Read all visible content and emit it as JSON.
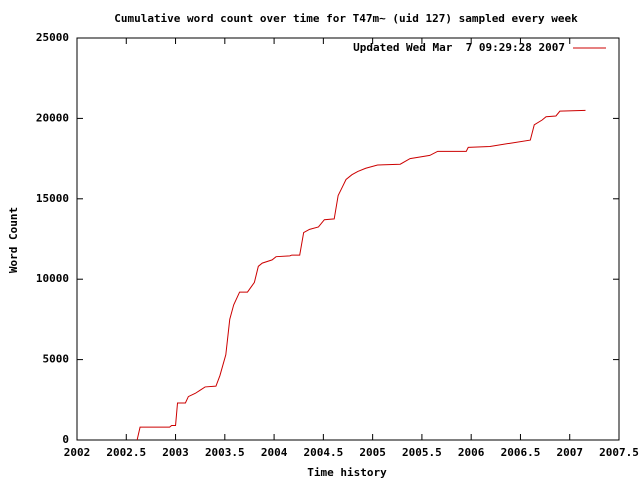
{
  "chart_data": {
    "type": "line",
    "title": "Cumulative word count over time for T47m~ (uid 127) sampled every week",
    "xlabel": "Time history",
    "ylabel": "Word Count",
    "xlim": [
      2002,
      2007.5
    ],
    "xticks": [
      2002,
      2002.5,
      2003,
      2003.5,
      2004,
      2004.5,
      2005,
      2005.5,
      2006,
      2006.5,
      2007,
      2007.5
    ],
    "ylim": [
      0,
      25000
    ],
    "yticks": [
      0,
      5000,
      10000,
      15000,
      20000,
      25000
    ],
    "legend": "top-right",
    "series": [
      {
        "name": "Updated Wed Mar  7 09:29:28 2007",
        "color": "#cc0000",
        "x": [
          2002.61,
          2002.64,
          2002.94,
          2002.96,
          2003.0,
          2003.02,
          2003.1,
          2003.13,
          2003.2,
          2003.25,
          2003.3,
          2003.41,
          2003.45,
          2003.51,
          2003.55,
          2003.59,
          2003.65,
          2003.73,
          2003.8,
          2003.84,
          2003.88,
          2003.98,
          2004.02,
          2004.16,
          2004.18,
          2004.26,
          2004.3,
          2004.36,
          2004.45,
          2004.51,
          2004.61,
          2004.65,
          2004.69,
          2004.73,
          2004.79,
          2004.85,
          2004.93,
          2005.05,
          2005.28,
          2005.38,
          2005.58,
          2005.66,
          2005.95,
          2005.97,
          2006.19,
          2006.39,
          2006.6,
          2006.64,
          2006.72,
          2006.76,
          2006.86,
          2006.9,
          2007.16
        ],
        "values": [
          0,
          800,
          800,
          900,
          900,
          2300,
          2300,
          2700,
          2900,
          3100,
          3300,
          3350,
          4000,
          5300,
          7500,
          8400,
          9200,
          9200,
          9800,
          10800,
          11000,
          11200,
          11400,
          11450,
          11500,
          11500,
          12900,
          13100,
          13250,
          13700,
          13750,
          15200,
          15700,
          16200,
          16500,
          16700,
          16900,
          17100,
          17150,
          17500,
          17700,
          17950,
          17950,
          18200,
          18250,
          18450,
          18650,
          19600,
          19900,
          20100,
          20150,
          20450,
          20500
        ]
      }
    ]
  }
}
